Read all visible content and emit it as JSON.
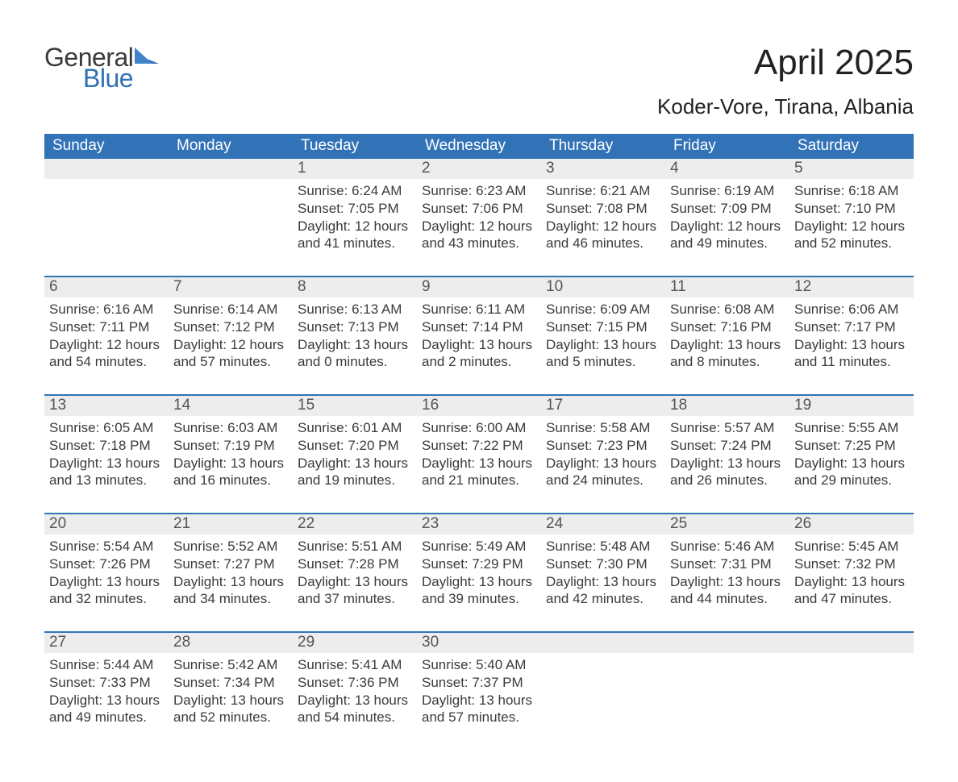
{
  "brand": {
    "word1": "General",
    "word2": "Blue",
    "mark_color": "#2f6fb3",
    "text_color": "#3a3a3a"
  },
  "title": {
    "month_year": "April 2025",
    "location": "Koder-Vore, Tirana, Albania"
  },
  "colors": {
    "header_bg": "#3273b8",
    "header_text": "#ffffff",
    "daynum_bg": "#ededed",
    "daynum_text": "#555555",
    "body_text": "#3b3b3b",
    "rule": "#3273b8",
    "page_bg": "#ffffff"
  },
  "typography": {
    "title_fontsize_pt": 33,
    "location_fontsize_pt": 20,
    "header_fontsize_pt": 14,
    "daynum_fontsize_pt": 14,
    "body_fontsize_pt": 13,
    "font_family": "Arial"
  },
  "calendar": {
    "day_labels": [
      "Sunday",
      "Monday",
      "Tuesday",
      "Wednesday",
      "Thursday",
      "Friday",
      "Saturday"
    ],
    "weeks": [
      [
        null,
        null,
        {
          "n": "1",
          "sunrise": "6:24 AM",
          "sunset": "7:05 PM",
          "daylight": "12 hours and 41 minutes."
        },
        {
          "n": "2",
          "sunrise": "6:23 AM",
          "sunset": "7:06 PM",
          "daylight": "12 hours and 43 minutes."
        },
        {
          "n": "3",
          "sunrise": "6:21 AM",
          "sunset": "7:08 PM",
          "daylight": "12 hours and 46 minutes."
        },
        {
          "n": "4",
          "sunrise": "6:19 AM",
          "sunset": "7:09 PM",
          "daylight": "12 hours and 49 minutes."
        },
        {
          "n": "5",
          "sunrise": "6:18 AM",
          "sunset": "7:10 PM",
          "daylight": "12 hours and 52 minutes."
        }
      ],
      [
        {
          "n": "6",
          "sunrise": "6:16 AM",
          "sunset": "7:11 PM",
          "daylight": "12 hours and 54 minutes."
        },
        {
          "n": "7",
          "sunrise": "6:14 AM",
          "sunset": "7:12 PM",
          "daylight": "12 hours and 57 minutes."
        },
        {
          "n": "8",
          "sunrise": "6:13 AM",
          "sunset": "7:13 PM",
          "daylight": "13 hours and 0 minutes."
        },
        {
          "n": "9",
          "sunrise": "6:11 AM",
          "sunset": "7:14 PM",
          "daylight": "13 hours and 2 minutes."
        },
        {
          "n": "10",
          "sunrise": "6:09 AM",
          "sunset": "7:15 PM",
          "daylight": "13 hours and 5 minutes."
        },
        {
          "n": "11",
          "sunrise": "6:08 AM",
          "sunset": "7:16 PM",
          "daylight": "13 hours and 8 minutes."
        },
        {
          "n": "12",
          "sunrise": "6:06 AM",
          "sunset": "7:17 PM",
          "daylight": "13 hours and 11 minutes."
        }
      ],
      [
        {
          "n": "13",
          "sunrise": "6:05 AM",
          "sunset": "7:18 PM",
          "daylight": "13 hours and 13 minutes."
        },
        {
          "n": "14",
          "sunrise": "6:03 AM",
          "sunset": "7:19 PM",
          "daylight": "13 hours and 16 minutes."
        },
        {
          "n": "15",
          "sunrise": "6:01 AM",
          "sunset": "7:20 PM",
          "daylight": "13 hours and 19 minutes."
        },
        {
          "n": "16",
          "sunrise": "6:00 AM",
          "sunset": "7:22 PM",
          "daylight": "13 hours and 21 minutes."
        },
        {
          "n": "17",
          "sunrise": "5:58 AM",
          "sunset": "7:23 PM",
          "daylight": "13 hours and 24 minutes."
        },
        {
          "n": "18",
          "sunrise": "5:57 AM",
          "sunset": "7:24 PM",
          "daylight": "13 hours and 26 minutes."
        },
        {
          "n": "19",
          "sunrise": "5:55 AM",
          "sunset": "7:25 PM",
          "daylight": "13 hours and 29 minutes."
        }
      ],
      [
        {
          "n": "20",
          "sunrise": "5:54 AM",
          "sunset": "7:26 PM",
          "daylight": "13 hours and 32 minutes."
        },
        {
          "n": "21",
          "sunrise": "5:52 AM",
          "sunset": "7:27 PM",
          "daylight": "13 hours and 34 minutes."
        },
        {
          "n": "22",
          "sunrise": "5:51 AM",
          "sunset": "7:28 PM",
          "daylight": "13 hours and 37 minutes."
        },
        {
          "n": "23",
          "sunrise": "5:49 AM",
          "sunset": "7:29 PM",
          "daylight": "13 hours and 39 minutes."
        },
        {
          "n": "24",
          "sunrise": "5:48 AM",
          "sunset": "7:30 PM",
          "daylight": "13 hours and 42 minutes."
        },
        {
          "n": "25",
          "sunrise": "5:46 AM",
          "sunset": "7:31 PM",
          "daylight": "13 hours and 44 minutes."
        },
        {
          "n": "26",
          "sunrise": "5:45 AM",
          "sunset": "7:32 PM",
          "daylight": "13 hours and 47 minutes."
        }
      ],
      [
        {
          "n": "27",
          "sunrise": "5:44 AM",
          "sunset": "7:33 PM",
          "daylight": "13 hours and 49 minutes."
        },
        {
          "n": "28",
          "sunrise": "5:42 AM",
          "sunset": "7:34 PM",
          "daylight": "13 hours and 52 minutes."
        },
        {
          "n": "29",
          "sunrise": "5:41 AM",
          "sunset": "7:36 PM",
          "daylight": "13 hours and 54 minutes."
        },
        {
          "n": "30",
          "sunrise": "5:40 AM",
          "sunset": "7:37 PM",
          "daylight": "13 hours and 57 minutes."
        },
        null,
        null,
        null
      ]
    ],
    "labels": {
      "sunrise": "Sunrise:",
      "sunset": "Sunset:",
      "daylight": "Daylight:"
    }
  }
}
